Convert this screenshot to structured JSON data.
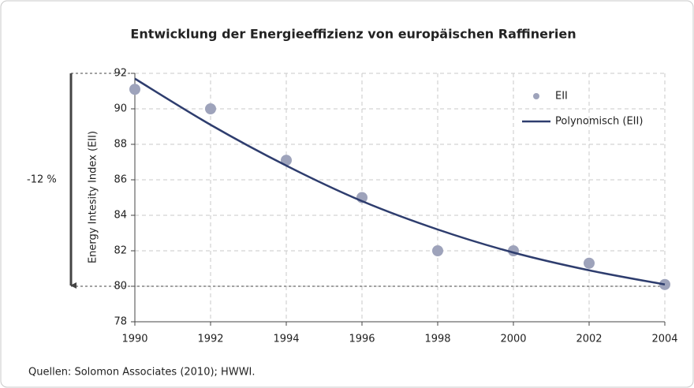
{
  "chart_data": {
    "type": "scatter",
    "title": "Entwicklung der Energieeffizienz von europäischen Raffinerien",
    "y_label": "Energy Intesity Index (EII)",
    "xlim": [
      1990,
      2004
    ],
    "xticks": [
      1990,
      1992,
      1994,
      1996,
      1998,
      2000,
      2002,
      2004
    ],
    "ylim": [
      78,
      92
    ],
    "yticks": [
      78,
      80,
      82,
      84,
      86,
      88,
      90,
      92
    ],
    "grid": true,
    "legend": "upper right",
    "series": [
      {
        "name": "EII",
        "mode": "markers",
        "color": "#9ea3bb",
        "x": [
          1990,
          1992,
          1994,
          1996,
          1998,
          2000,
          2002,
          2004
        ],
        "values": [
          91.1,
          90.0,
          87.1,
          85.0,
          82.0,
          82.0,
          81.3,
          80.1
        ]
      },
      {
        "name": "Polynomisch (EII)",
        "mode": "line",
        "color": "#2e3d6e",
        "x": [
          1990,
          1992,
          1994,
          1996,
          1998,
          2000,
          2002,
          2004
        ],
        "values": [
          91.7,
          89.1,
          86.8,
          84.8,
          83.2,
          81.9,
          80.9,
          80.1
        ]
      }
    ],
    "annotation": {
      "label": "-12 %",
      "from": 92,
      "to": 80
    },
    "source": "Quellen: Solomon Associates (2010); HWWI."
  }
}
